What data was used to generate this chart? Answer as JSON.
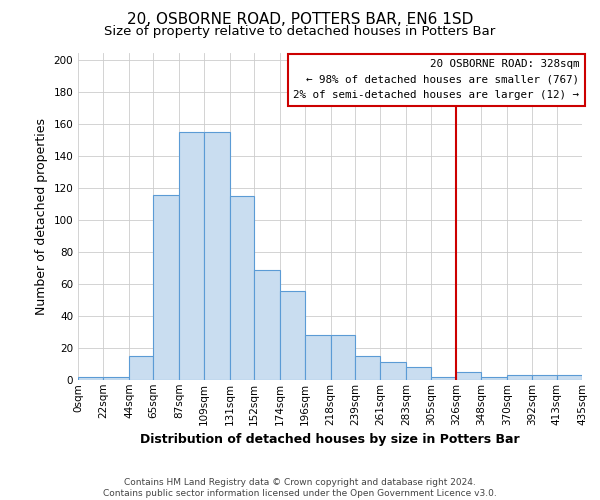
{
  "title": "20, OSBORNE ROAD, POTTERS BAR, EN6 1SD",
  "subtitle": "Size of property relative to detached houses in Potters Bar",
  "xlabel": "Distribution of detached houses by size in Potters Bar",
  "ylabel": "Number of detached properties",
  "footer_line1": "Contains HM Land Registry data © Crown copyright and database right 2024.",
  "footer_line2": "Contains public sector information licensed under the Open Government Licence v3.0.",
  "bin_edges": [
    0,
    22,
    44,
    65,
    87,
    109,
    131,
    152,
    174,
    196,
    218,
    239,
    261,
    283,
    305,
    326,
    348,
    370,
    392,
    413,
    435
  ],
  "bin_labels": [
    "0sqm",
    "22sqm",
    "44sqm",
    "65sqm",
    "87sqm",
    "109sqm",
    "131sqm",
    "152sqm",
    "174sqm",
    "196sqm",
    "218sqm",
    "239sqm",
    "261sqm",
    "283sqm",
    "305sqm",
    "326sqm",
    "348sqm",
    "370sqm",
    "392sqm",
    "413sqm",
    "435sqm"
  ],
  "bar_heights": [
    2,
    2,
    15,
    116,
    155,
    155,
    115,
    69,
    56,
    28,
    28,
    15,
    11,
    8,
    2,
    5,
    2,
    3,
    3,
    3
  ],
  "bar_color": "#c9ddf0",
  "bar_edge_color": "#5b9bd5",
  "vline_x": 326,
  "vline_color": "#cc0000",
  "ylim": [
    0,
    205
  ],
  "yticks": [
    0,
    20,
    40,
    60,
    80,
    100,
    120,
    140,
    160,
    180,
    200
  ],
  "grid_color": "#cccccc",
  "bg_color": "#ffffff",
  "legend_title": "20 OSBORNE ROAD: 328sqm",
  "legend_line1": "← 98% of detached houses are smaller (767)",
  "legend_line2": "2% of semi-detached houses are larger (12) →",
  "legend_box_color": "#ffffff",
  "legend_box_edge_color": "#cc0000",
  "title_fontsize": 11,
  "subtitle_fontsize": 9.5,
  "axis_label_fontsize": 9,
  "tick_fontsize": 7.5,
  "footer_fontsize": 6.5,
  "legend_fontsize": 7.8
}
